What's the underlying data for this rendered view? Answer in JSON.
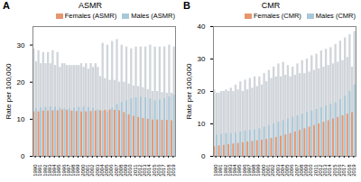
{
  "chart_data": [
    {
      "type": "bar",
      "title": "ASMR",
      "annotations": [
        "A"
      ],
      "ylabel": "Rate per 100,000",
      "categories": [
        "1990",
        "1991",
        "1992",
        "1993",
        "1994",
        "1995",
        "1996",
        "1997",
        "1998",
        "1999",
        "2000",
        "2001",
        "2002",
        "2003",
        "2004",
        "2005",
        "2006",
        "2007",
        "2008",
        "2009",
        "2010",
        "2011",
        "2012",
        "2013",
        "2014",
        "2015",
        "2016",
        "2017",
        "2018",
        "2019"
      ],
      "series": [
        {
          "name": "Females (ASMR)",
          "color": "#E8956D",
          "values": [
            12.0,
            12.0,
            12.2,
            12.2,
            12.3,
            12.3,
            12.5,
            12.4,
            12.2,
            12.1,
            12.0,
            12.0,
            12.1,
            12.2,
            12.3,
            12.4,
            12.5,
            12.4,
            12.3,
            11.8,
            11.2,
            10.8,
            10.5,
            10.2,
            10.0,
            9.8,
            9.8,
            9.7,
            9.7,
            9.6
          ],
          "ci_high": {
            "color": "#D0D5DA",
            "values": [
              29.0,
              28.5,
              28.0,
              28.0,
              28.5,
              28.0,
              25.0,
              24.5,
              24.5,
              24.5,
              25.0,
              25.0,
              25.0,
              25.0,
              21.5,
              21.0,
              20.5,
              20.5,
              20.0,
              20.0,
              19.5,
              19.0,
              18.8,
              18.5,
              18.0,
              17.5,
              17.5,
              17.2,
              17.0,
              17.0
            ]
          }
        },
        {
          "name": "Males (ASMR)",
          "color": "#A8C8D8",
          "values": [
            12.8,
            13.0,
            13.2,
            13.3,
            13.3,
            13.0,
            12.8,
            12.8,
            13.0,
            13.2,
            13.3,
            13.2,
            13.0,
            12.5,
            12.2,
            12.0,
            13.0,
            14.0,
            14.5,
            15.0,
            15.5,
            15.8,
            16.0,
            15.8,
            15.5,
            15.0,
            15.2,
            15.5,
            16.0,
            16.5
          ],
          "ci_high": {
            "color": "#D0D5DA",
            "values": [
              25.5,
              25.0,
              25.0,
              25.0,
              24.5,
              24.0,
              25.0,
              24.5,
              24.5,
              24.5,
              24.0,
              23.5,
              24.0,
              24.0,
              30.5,
              30.0,
              31.0,
              31.5,
              30.0,
              29.5,
              29.0,
              29.5,
              29.5,
              29.5,
              30.0,
              29.5,
              29.5,
              29.5,
              30.0,
              29.5
            ]
          }
        }
      ],
      "ylim": [
        0,
        35
      ],
      "yticks": [
        0,
        10,
        20,
        30
      ],
      "legend": "upper right"
    },
    {
      "type": "bar",
      "title": "CMR",
      "annotations": [
        "B"
      ],
      "ylabel": "Rate per 100,000",
      "categories": [
        "1990",
        "1991",
        "1992",
        "1993",
        "1994",
        "1995",
        "1996",
        "1997",
        "1998",
        "1999",
        "2000",
        "2001",
        "2002",
        "2003",
        "2004",
        "2005",
        "2006",
        "2007",
        "2008",
        "2009",
        "2010",
        "2011",
        "2012",
        "2013",
        "2014",
        "2015",
        "2016",
        "2017",
        "2018",
        "2019"
      ],
      "series": [
        {
          "name": "Females (CMR)",
          "color": "#E8956D",
          "values": [
            3.0,
            3.2,
            3.4,
            3.6,
            3.8,
            4.0,
            4.2,
            4.4,
            4.6,
            4.8,
            5.0,
            5.2,
            5.5,
            5.8,
            6.2,
            6.6,
            7.0,
            7.5,
            8.0,
            8.5,
            9.0,
            9.5,
            10.0,
            10.5,
            11.0,
            11.5,
            12.0,
            12.5,
            13.0,
            13.5
          ],
          "ci_high": {
            "color": "#D0D5DA",
            "values": [
              20.5,
              19.5,
              20.0,
              20.0,
              20.0,
              20.5,
              20.0,
              20.5,
              21.0,
              21.5,
              22.0,
              23.0,
              24.0,
              24.5,
              24.5,
              25.0,
              24.5,
              25.0,
              25.5,
              25.5,
              26.0,
              26.5,
              27.0,
              27.5,
              28.0,
              28.5,
              29.0,
              29.5,
              30.5,
              27.5
            ]
          }
        },
        {
          "name": "Males (CMR)",
          "color": "#A8C8D8",
          "values": [
            6.5,
            6.8,
            7.0,
            7.0,
            7.2,
            7.5,
            7.8,
            8.0,
            8.2,
            8.5,
            9.0,
            9.5,
            10.0,
            10.5,
            11.0,
            11.5,
            12.0,
            12.5,
            13.0,
            13.5,
            14.0,
            14.5,
            15.0,
            15.5,
            16.0,
            16.5,
            17.5,
            18.5,
            20.0,
            22.0
          ],
          "ci_high": {
            "color": "#D0D5DA",
            "values": [
              19.5,
              20.0,
              20.5,
              21.0,
              22.0,
              23.0,
              23.5,
              24.0,
              24.5,
              24.5,
              25.5,
              26.5,
              27.5,
              28.5,
              29.0,
              28.0,
              27.5,
              28.5,
              29.5,
              30.0,
              31.0,
              31.5,
              32.5,
              33.0,
              33.5,
              34.5,
              35.5,
              36.5,
              37.5,
              38.5
            ]
          }
        }
      ],
      "ylim": [
        0,
        40
      ],
      "yticks": [
        0,
        10,
        20,
        30,
        40
      ],
      "legend": "upper right"
    }
  ]
}
